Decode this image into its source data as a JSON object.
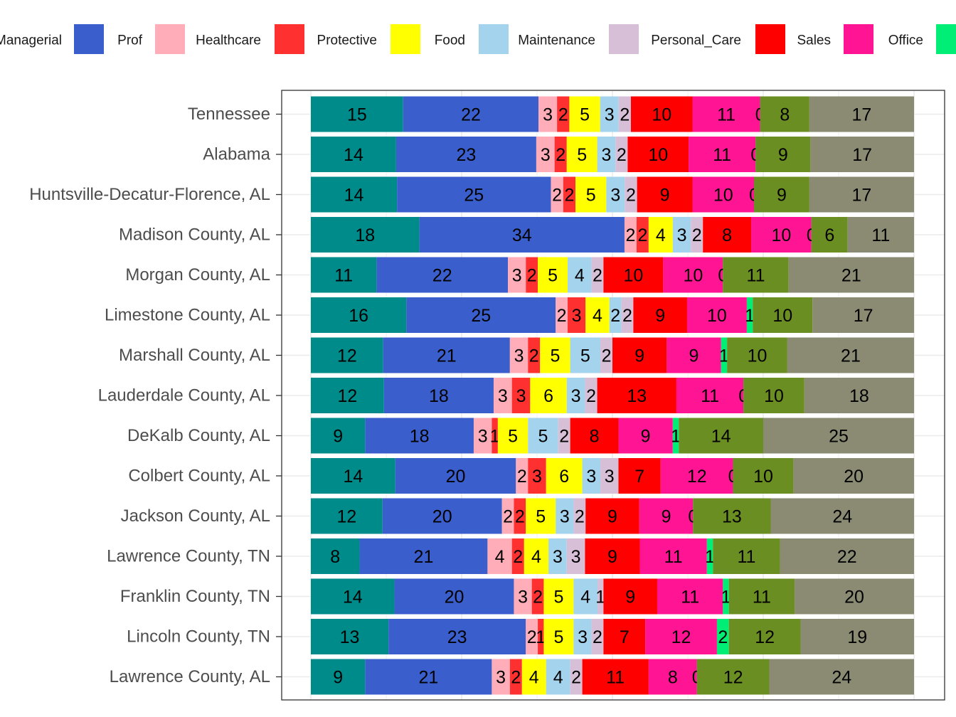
{
  "chart_data": {
    "type": "bar",
    "orientation": "horizontal",
    "stacked": true,
    "normalized": true,
    "legend": {
      "position": "top",
      "visible_entries": [
        "Managerial",
        "Prof",
        "Healthcare",
        "Protective",
        "Food",
        "Maintenance",
        "Personal_Care",
        "Sales",
        "Office"
      ]
    },
    "grid": true,
    "categories": [
      "Tennessee",
      "Alabama",
      "Huntsville-Decatur-Florence, AL",
      "Madison County, AL",
      "Morgan County, AL",
      "Limestone County, AL",
      "Marshall County, AL",
      "Lauderdale County, AL",
      "DeKalb County, AL",
      "Colbert County, AL",
      "Jackson County, AL",
      "Lawrence County, TN",
      "Franklin County, TN",
      "Lincoln County, TN",
      "Lawrence County, AL"
    ],
    "series": [
      {
        "name": "Managerial",
        "color": "#008B8B",
        "values": [
          15,
          14,
          14,
          18,
          11,
          16,
          12,
          12,
          9,
          14,
          12,
          8,
          14,
          13,
          9
        ]
      },
      {
        "name": "Prof",
        "color": "#3A5FCD",
        "values": [
          22,
          23,
          25,
          34,
          22,
          25,
          21,
          18,
          18,
          20,
          20,
          21,
          20,
          23,
          21
        ]
      },
      {
        "name": "Healthcare",
        "color": "#FFAEB9",
        "values": [
          3,
          3,
          2,
          2,
          3,
          2,
          3,
          3,
          3,
          2,
          2,
          4,
          3,
          2,
          3
        ]
      },
      {
        "name": "Protective",
        "color": "#FF3030",
        "values": [
          2,
          2,
          2,
          2,
          2,
          3,
          2,
          3,
          1,
          3,
          2,
          2,
          2,
          1,
          2
        ]
      },
      {
        "name": "Food",
        "color": "#FFFF00",
        "values": [
          5,
          5,
          5,
          4,
          5,
          4,
          5,
          6,
          5,
          6,
          5,
          4,
          5,
          5,
          4
        ]
      },
      {
        "name": "Maintenance",
        "color": "#A4D3EE",
        "values": [
          3,
          3,
          3,
          3,
          4,
          2,
          5,
          3,
          5,
          3,
          3,
          3,
          4,
          3,
          4
        ]
      },
      {
        "name": "Personal_Care",
        "color": "#D8BFD8",
        "values": [
          2,
          2,
          2,
          2,
          2,
          2,
          2,
          2,
          2,
          3,
          2,
          3,
          1,
          2,
          2
        ]
      },
      {
        "name": "Sales",
        "color": "#FF0000",
        "values": [
          10,
          10,
          9,
          8,
          10,
          9,
          9,
          13,
          8,
          7,
          9,
          9,
          9,
          7,
          11
        ]
      },
      {
        "name": "Office",
        "color": "#FF1493",
        "values": [
          11,
          11,
          10,
          10,
          10,
          10,
          9,
          11,
          9,
          12,
          9,
          11,
          11,
          12,
          8
        ]
      },
      {
        "name": "",
        "color": "#00EE76",
        "values": [
          0,
          0,
          0,
          0,
          0,
          1,
          1,
          0,
          1,
          0,
          0,
          1,
          1,
          2,
          0
        ]
      },
      {
        "name": "",
        "color": "#6B8E23",
        "values": [
          8,
          9,
          9,
          6,
          11,
          10,
          10,
          10,
          14,
          10,
          13,
          11,
          11,
          12,
          12
        ]
      },
      {
        "name": "",
        "color": "#8B8B73",
        "values": [
          17,
          17,
          17,
          11,
          21,
          17,
          21,
          18,
          25,
          20,
          24,
          22,
          20,
          19,
          24
        ]
      }
    ]
  }
}
